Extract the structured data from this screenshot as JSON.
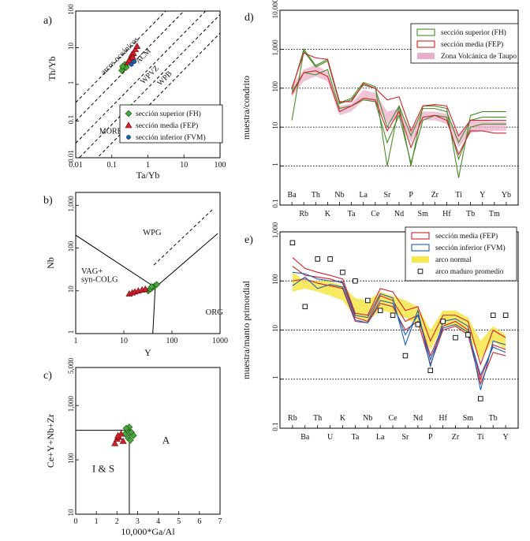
{
  "colors": {
    "green": "#4a8a2a",
    "green_marker": "#46a83a",
    "red": "#d0202a",
    "blue": "#1a5fb4",
    "pink": "#e8b0c8",
    "yellow": "#f5e64a",
    "black": "#000000"
  },
  "chart_data": [
    {
      "id": "a",
      "panel_label": "a)",
      "type": "scatter",
      "xlabel": "Ta/Yb",
      "ylabel": "Th/Yb",
      "xlim": [
        0.01,
        100
      ],
      "ylim": [
        0.01,
        100
      ],
      "scale": "log",
      "xticks": [
        "0.01",
        "0.1",
        "1",
        "10",
        "100"
      ],
      "yticks": [
        "0.01",
        "0.1",
        "1",
        "10",
        "100"
      ],
      "field_labels": [
        {
          "text": "arcos oceánicos",
          "x": 0.06,
          "y": 1.8,
          "rotate": -45
        },
        {
          "text": "ACM",
          "x": 0.55,
          "y": 3.6,
          "rotate": -45
        },
        {
          "text": "WPVZ",
          "x": 0.75,
          "y": 1.0,
          "rotate": -45
        },
        {
          "text": "WPB",
          "x": 2.2,
          "y": 0.9,
          "rotate": -45
        },
        {
          "text": "MORB",
          "x": 0.045,
          "y": 0.045,
          "rotate": 0
        }
      ],
      "legend": [
        {
          "label": "sección superior (FH)",
          "marker": "diamond",
          "color": "#46a83a"
        },
        {
          "label": "sección media (FEP)",
          "marker": "triangle",
          "color": "#d0202a"
        },
        {
          "label": "sección inferior (FVM)",
          "marker": "circle",
          "color": "#1a5fb4"
        }
      ],
      "series": [
        {
          "name": "sección superior (FH)",
          "marker": "diamond",
          "color": "#46a83a",
          "x": [
            0.2,
            0.22,
            0.24,
            0.21,
            0.19,
            0.23,
            0.25,
            0.2
          ],
          "y": [
            2.5,
            3.0,
            3.2,
            2.8,
            2.4,
            3.5,
            2.9,
            3.1
          ]
        },
        {
          "name": "sección media (FEP)",
          "marker": "triangle",
          "color": "#d0202a",
          "x": [
            0.28,
            0.32,
            0.36,
            0.4,
            0.45,
            0.5,
            0.3,
            0.38
          ],
          "y": [
            4.0,
            5.0,
            6.5,
            7.0,
            9.0,
            11.0,
            4.5,
            5.5
          ]
        },
        {
          "name": "sección inferior (FVM)",
          "marker": "circle",
          "color": "#1a5fb4",
          "x": [
            0.35,
            0.42
          ],
          "y": [
            3.5,
            4.2
          ]
        }
      ]
    },
    {
      "id": "b",
      "panel_label": "b)",
      "type": "scatter",
      "xlabel": "Y",
      "ylabel": "Nb",
      "xlim": [
        1,
        1000
      ],
      "ylim": [
        1,
        2000
      ],
      "scale": "log",
      "xticks": [
        "1",
        "10",
        "100",
        "1000"
      ],
      "yticks": [
        "1",
        "10",
        "100",
        "1,000"
      ],
      "field_labels": [
        {
          "text": "WPG",
          "x": 25,
          "y": 200
        },
        {
          "text": "VAG+",
          "x": 1.3,
          "y": 25
        },
        {
          "text": "syn-COLG",
          "x": 1.3,
          "y": 16
        },
        {
          "text": "ORG",
          "x": 500,
          "y": 2.8
        }
      ],
      "series": [
        {
          "name": "sección superior (FH)",
          "marker": "diamond",
          "color": "#46a83a",
          "x": [
            32,
            36,
            40,
            44,
            48,
            38
          ],
          "y": [
            10,
            11,
            12,
            13,
            14,
            12.5
          ]
        },
        {
          "name": "sección media (FEP)",
          "marker": "triangle",
          "color": "#d0202a",
          "x": [
            13,
            15,
            17,
            20,
            24,
            28
          ],
          "y": [
            8.5,
            9,
            9.5,
            10,
            10.5,
            11
          ]
        }
      ]
    },
    {
      "id": "c",
      "panel_label": "c)",
      "type": "scatter",
      "xlabel": "10,000*Ga/Al",
      "ylabel": "Ce+Y+Nb+Zr",
      "xlim": [
        0,
        7
      ],
      "ylim": [
        10,
        5000
      ],
      "yscale": "log",
      "xticks": [
        "0",
        "1",
        "2",
        "3",
        "4",
        "5",
        "6",
        "7"
      ],
      "yticks": [
        "10",
        "100",
        "1,000",
        "5,000"
      ],
      "field_labels": [
        {
          "text": "A",
          "x": 4.2,
          "y": 200
        },
        {
          "text": "I & S",
          "x": 0.8,
          "y": 60
        }
      ],
      "series": [
        {
          "name": "sección superior (FH)",
          "marker": "diamond",
          "color": "#46a83a",
          "x": [
            2.4,
            2.5,
            2.6,
            2.7,
            2.8,
            2.55,
            2.65,
            2.45
          ],
          "y": [
            300,
            350,
            400,
            320,
            280,
            250,
            230,
            380
          ]
        },
        {
          "name": "sección media (FEP)",
          "marker": "triangle",
          "color": "#d0202a",
          "x": [
            1.9,
            2.0,
            2.1,
            2.2,
            2.3,
            2.05
          ],
          "y": [
            200,
            240,
            260,
            300,
            220,
            280
          ]
        }
      ]
    },
    {
      "id": "d",
      "panel_label": "d)",
      "type": "line",
      "ylabel": "muestra/condrito",
      "ylim": [
        0.1,
        10000
      ],
      "yscale": "log",
      "yticks": [
        "0.1",
        "1",
        "10",
        "100",
        "1,000",
        "10,000"
      ],
      "categories": [
        "Ba",
        "Rb",
        "Th",
        "K",
        "Nb",
        "Ta",
        "La",
        "Ce",
        "Sr",
        "Nd",
        "P",
        "Sm",
        "Zr",
        "Hf",
        "Ti",
        "Tb",
        "Y",
        "Tm",
        "Yb"
      ],
      "legend": [
        {
          "label": "sección superior (FH)",
          "style": "line",
          "color": "#4a8a2a"
        },
        {
          "label": "sección media (FEP)",
          "style": "line",
          "color": "#d0202a"
        },
        {
          "label": "Zona Volcánica de Taupo",
          "style": "fill",
          "color": "#e8b0c8"
        }
      ],
      "band": {
        "name": "Zona Volcánica de Taupo",
        "color": "#e8b0c8",
        "low": [
          60,
          150,
          200,
          150,
          20,
          25,
          50,
          45,
          12,
          18,
          4,
          15,
          15,
          12,
          3,
          7,
          8,
          8,
          8
        ],
        "high": [
          120,
          300,
          400,
          260,
          35,
          40,
          90,
          75,
          25,
          30,
          8,
          25,
          25,
          22,
          6,
          15,
          15,
          14,
          14
        ]
      },
      "series": [
        {
          "name": "sección superior (FH) 1",
          "color": "#4a8a2a",
          "values": [
            15,
            900,
            350,
            500,
            40,
            50,
            120,
            100,
            10,
            35,
            6,
            30,
            30,
            25,
            4,
            15,
            18,
            18,
            18
          ]
        },
        {
          "name": "sección superior (FH) 2",
          "color": "#4a8a2a",
          "values": [
            90,
            1000,
            380,
            550,
            42,
            55,
            140,
            110,
            1,
            35,
            1,
            35,
            35,
            30,
            0.5,
            20,
            25,
            25,
            25
          ]
        },
        {
          "name": "sección superior (FH) 3",
          "color": "#4a8a2a",
          "values": [
            80,
            250,
            220,
            300,
            30,
            35,
            50,
            45,
            4,
            20,
            1.2,
            15,
            20,
            18,
            1.5,
            10,
            12,
            12,
            12
          ]
        },
        {
          "name": "sección media (FEP) 1",
          "color": "#d0202a",
          "values": [
            100,
            800,
            600,
            550,
            45,
            45,
            130,
            100,
            50,
            60,
            8,
            35,
            38,
            35,
            6,
            15,
            15,
            15,
            15
          ]
        },
        {
          "name": "sección media (FEP) 2",
          "color": "#d0202a",
          "values": [
            70,
            250,
            280,
            200,
            25,
            35,
            55,
            50,
            8,
            25,
            3,
            18,
            20,
            15,
            2,
            8,
            8,
            7,
            7
          ]
        }
      ]
    },
    {
      "id": "e",
      "panel_label": "e)",
      "type": "line",
      "ylabel": "muestra/manto primordial",
      "ylim": [
        0.1,
        1000
      ],
      "yscale": "log",
      "yticks": [
        "0.1",
        "1",
        "10",
        "100",
        "1,000"
      ],
      "categories": [
        "Rb",
        "Ba",
        "Th",
        "U",
        "K",
        "Ta",
        "Nb",
        "La",
        "Ce",
        "Sr",
        "Nd",
        "P",
        "Hf",
        "Zr",
        "Sm",
        "Ti",
        "Tb",
        "Y"
      ],
      "legend": [
        {
          "label": "sección media (FEP)",
          "style": "line",
          "color": "#d0202a"
        },
        {
          "label": "sección inferior (FVM)",
          "style": "line",
          "color": "#1a5fb4"
        },
        {
          "label": "arco normal",
          "style": "fill",
          "color": "#f5e64a"
        },
        {
          "label": "arco maduro promedio",
          "style": "square",
          "color": "#000000"
        }
      ],
      "band": {
        "name": "arco normal",
        "color": "#f5e64a",
        "low": [
          60,
          70,
          60,
          50,
          40,
          18,
          15,
          25,
          22,
          18,
          12,
          4,
          12,
          12,
          8,
          2.5,
          6,
          4
        ],
        "high": [
          150,
          100,
          100,
          100,
          80,
          45,
          40,
          60,
          50,
          40,
          30,
          10,
          25,
          25,
          18,
          6,
          12,
          8
        ]
      },
      "series": [
        {
          "name": "sección media (FEP) 1",
          "color": "#d0202a",
          "values": [
            300,
            180,
            150,
            130,
            110,
            22,
            20,
            70,
            60,
            25,
            30,
            6,
            20,
            20,
            15,
            2,
            10,
            7
          ]
        },
        {
          "name": "sección media (FEP) 2",
          "color": "#d0202a",
          "values": [
            200,
            130,
            120,
            110,
            90,
            18,
            15,
            50,
            40,
            15,
            20,
            3,
            12,
            15,
            10,
            1,
            5,
            4
          ]
        },
        {
          "name": "sección media (FEP) 3",
          "color": "#d0202a",
          "values": [
            100,
            110,
            90,
            80,
            70,
            15,
            14,
            35,
            30,
            10,
            15,
            2,
            10,
            12,
            8,
            0.8,
            3.5,
            3
          ]
        },
        {
          "name": "sección inferior (FVM) 1",
          "color": "#1a5fb4",
          "values": [
            80,
            120,
            70,
            85,
            75,
            16,
            14,
            40,
            35,
            8,
            20,
            2.5,
            11,
            13,
            9,
            1.2,
            4.5,
            3.5
          ]
        },
        {
          "name": "sección inferior (FVM) 2",
          "color": "#1a5fb4",
          "values": [
            150,
            140,
            110,
            100,
            95,
            20,
            18,
            55,
            45,
            5,
            25,
            1.8,
            15,
            17,
            12,
            0.6,
            6,
            5
          ]
        }
      ],
      "markers": {
        "name": "arco maduro promedio",
        "values": [
          600,
          30,
          280,
          280,
          150,
          100,
          40,
          25,
          20,
          3,
          13,
          1.5,
          15,
          7,
          8,
          0.4,
          20,
          20
        ]
      }
    }
  ]
}
